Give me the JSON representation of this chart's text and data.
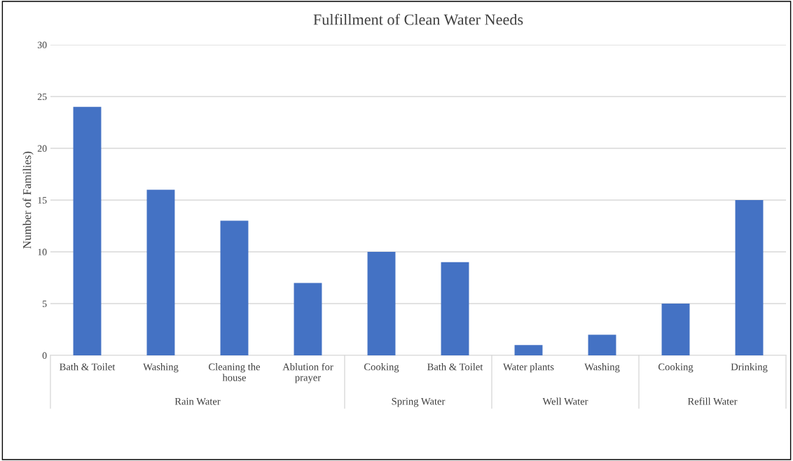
{
  "chart_data": [
    {
      "type": "bar",
      "legend": false,
      "ylabel": "Number of Families)",
      "xlabel": "Rain Water",
      "categories": [
        "Bath & Toilet",
        "Washing",
        "Cleaning the\nhouse",
        "Ablution for\nprayer"
      ],
      "values": [
        24,
        16,
        13,
        7
      ],
      "color": "#4472c4",
      "ylim": [
        0,
        30
      ],
      "yticks": [
        0,
        5,
        10,
        15,
        20,
        25,
        30
      ],
      "grid": "y"
    },
    {
      "type": "bar",
      "title": "Fulfillment of Clean Water Needs",
      "xlabel": "Spring Water",
      "categories": [
        "Cooking",
        "Bath & Toilet"
      ],
      "values": [
        10,
        9
      ],
      "color": "#4472c4",
      "ylim": [
        0,
        30
      ],
      "grid": "y",
      "tick_labels": "x"
    },
    {
      "type": "bar",
      "xlabel": "Well Water",
      "categories": [
        "Water plants",
        "Washing"
      ],
      "values": [
        1,
        2
      ],
      "color": "#4472c4",
      "ylim": [
        0,
        30
      ],
      "grid": "y",
      "tick_labels": "x"
    },
    {
      "type": "bar",
      "xlabel": "Refill Water",
      "categories": [
        "Cooking",
        "Drinking"
      ],
      "values": [
        5,
        15
      ],
      "color": "#4472c4",
      "ylim": [
        0,
        30
      ],
      "grid": "y",
      "tick_labels": "x"
    }
  ]
}
